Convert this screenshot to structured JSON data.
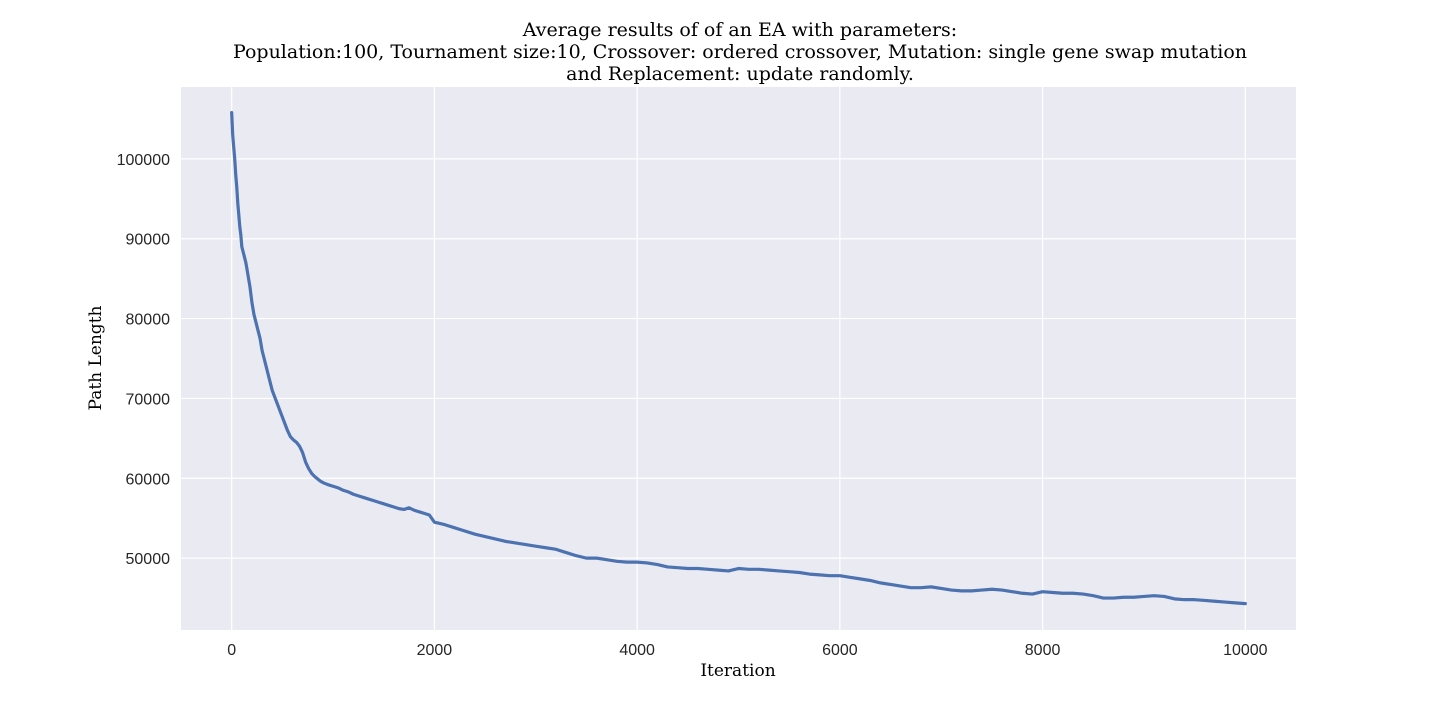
{
  "chart_data": {
    "type": "line",
    "title_lines": [
      "Average results of of an EA with parameters:",
      "Population:100, Tournament size:10, Crossover: ordered crossover, Mutation: single gene swap mutation",
      "and Replacement: update randomly."
    ],
    "xlabel": "Iteration",
    "ylabel": "Path Length",
    "xlim": [
      -500,
      10500
    ],
    "ylim": [
      41000,
      109000
    ],
    "xticks": [
      0,
      2000,
      4000,
      6000,
      8000,
      10000
    ],
    "yticks": [
      50000,
      60000,
      70000,
      80000,
      90000,
      100000
    ],
    "grid": true,
    "colors": {
      "plot_background": "#eaeaf2",
      "grid": "#ffffff",
      "line": "#4c72b0"
    },
    "series": [
      {
        "x": [
          0,
          10,
          20,
          30,
          40,
          50,
          60,
          70,
          80,
          90,
          100,
          120,
          140,
          160,
          180,
          200,
          220,
          240,
          260,
          280,
          300,
          320,
          340,
          360,
          380,
          400,
          430,
          460,
          490,
          520,
          550,
          580,
          610,
          640,
          670,
          700,
          730,
          760,
          790,
          820,
          850,
          880,
          910,
          950,
          1000,
          1050,
          1100,
          1150,
          1200,
          1250,
          1300,
          1350,
          1400,
          1450,
          1500,
          1550,
          1600,
          1650,
          1700,
          1750,
          1800,
          1850,
          1900,
          1950,
          2000,
          2100,
          2200,
          2300,
          2400,
          2500,
          2600,
          2700,
          2800,
          2900,
          3000,
          3100,
          3200,
          3300,
          3400,
          3500,
          3600,
          3700,
          3800,
          3900,
          4000,
          4100,
          4200,
          4300,
          4400,
          4500,
          4600,
          4700,
          4800,
          4900,
          5000,
          5100,
          5200,
          5300,
          5400,
          5500,
          5600,
          5700,
          5800,
          5900,
          6000,
          6100,
          6200,
          6300,
          6400,
          6500,
          6600,
          6700,
          6800,
          6900,
          7000,
          7100,
          7200,
          7300,
          7400,
          7500,
          7600,
          7700,
          7800,
          7900,
          8000,
          8100,
          8200,
          8300,
          8400,
          8500,
          8600,
          8700,
          8800,
          8900,
          9000,
          9100,
          9200,
          9300,
          9400,
          9500,
          9600,
          9700,
          9800,
          9900,
          10000
        ],
        "y": [
          105800,
          103000,
          101500,
          100000,
          98000,
          96500,
          94500,
          93000,
          91500,
          90500,
          89000,
          88000,
          87000,
          85500,
          84000,
          82000,
          80500,
          79500,
          78500,
          77500,
          76000,
          75000,
          74000,
          73000,
          72000,
          71000,
          70000,
          69000,
          68000,
          67000,
          66000,
          65200,
          64800,
          64500,
          64000,
          63200,
          62000,
          61200,
          60600,
          60200,
          59900,
          59600,
          59400,
          59200,
          59000,
          58800,
          58500,
          58300,
          58000,
          57800,
          57600,
          57400,
          57200,
          57000,
          56800,
          56600,
          56400,
          56200,
          56100,
          56300,
          56000,
          55800,
          55600,
          55400,
          54500,
          54200,
          53800,
          53400,
          53000,
          52700,
          52400,
          52100,
          51900,
          51700,
          51500,
          51300,
          51100,
          50700,
          50300,
          50000,
          50000,
          49800,
          49600,
          49500,
          49500,
          49400,
          49200,
          48900,
          48800,
          48700,
          48700,
          48600,
          48500,
          48400,
          48700,
          48600,
          48600,
          48500,
          48400,
          48300,
          48200,
          48000,
          47900,
          47800,
          47800,
          47600,
          47400,
          47200,
          46900,
          46700,
          46500,
          46300,
          46300,
          46400,
          46200,
          46000,
          45900,
          45900,
          46000,
          46100,
          46000,
          45800,
          45600,
          45500,
          45800,
          45700,
          45600,
          45600,
          45500,
          45300,
          45000,
          45000,
          45100,
          45100,
          45200,
          45300,
          45200,
          44900,
          44800,
          44800,
          44700,
          44600,
          44500,
          44400,
          44300
        ]
      }
    ]
  }
}
